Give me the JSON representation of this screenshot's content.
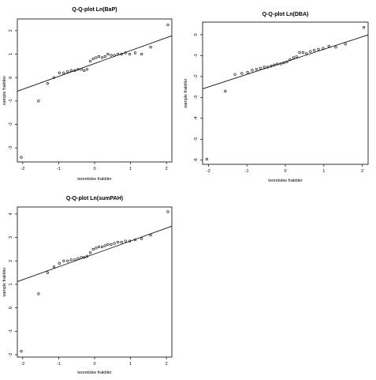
{
  "chart_data": [
    {
      "type": "scatter",
      "title": "Q-Q-plot Ln(BaP)",
      "xlabel": "teoretiske fraktiler",
      "ylabel": "sample fraktiler",
      "xlim": [
        -2.15,
        2.15
      ],
      "ylim": [
        -3.6,
        2.5
      ],
      "xticks": [
        -2,
        -1,
        0,
        1,
        2
      ],
      "yticks": [
        -3,
        -2,
        -1,
        0,
        1,
        2
      ],
      "grid": false,
      "reference_line": {
        "slope": 0.55,
        "intercept": 0.6
      },
      "series": [
        {
          "x": [
            -2.04,
            -1.56,
            -1.31,
            -1.13,
            -0.98,
            -0.86,
            -0.75,
            -0.65,
            -0.55,
            -0.46,
            -0.37,
            -0.29,
            -0.21,
            -0.12,
            -0.04,
            0.04,
            0.12,
            0.21,
            0.29,
            0.37,
            0.46,
            0.55,
            0.65,
            0.75,
            0.86,
            0.98,
            1.13,
            1.31,
            1.56,
            2.04
          ],
          "y": [
            -3.4,
            -1.0,
            -0.25,
            0.0,
            0.2,
            0.2,
            0.25,
            0.3,
            0.3,
            0.35,
            0.35,
            0.3,
            0.35,
            0.7,
            0.8,
            0.85,
            0.9,
            0.85,
            0.9,
            1.0,
            0.95,
            0.95,
            1.0,
            1.0,
            1.05,
            1.0,
            1.05,
            1.0,
            1.3,
            2.25
          ]
        }
      ]
    },
    {
      "type": "scatter",
      "title": "Q-Q-plot Ln(DBA)",
      "xlabel": "teoretiske fraktiler",
      "ylabel": "sample fraktiler",
      "xlim": [
        -2.15,
        2.15
      ],
      "ylim": [
        -6.2,
        0.6
      ],
      "xticks": [
        -2,
        -1,
        0,
        1,
        2
      ],
      "yticks": [
        -6,
        -5,
        -4,
        -3,
        -2,
        -1,
        0
      ],
      "grid": false,
      "reference_line": {
        "slope": 0.6,
        "intercept": -1.3
      },
      "series": [
        {
          "x": [
            -2.04,
            -1.56,
            -1.31,
            -1.13,
            -0.98,
            -0.86,
            -0.75,
            -0.65,
            -0.55,
            -0.46,
            -0.37,
            -0.29,
            -0.21,
            -0.12,
            -0.04,
            0.04,
            0.12,
            0.21,
            0.29,
            0.37,
            0.46,
            0.55,
            0.65,
            0.75,
            0.86,
            0.98,
            1.13,
            1.31,
            1.56,
            2.04
          ],
          "y": [
            -5.95,
            -2.7,
            -1.9,
            -1.85,
            -1.8,
            -1.7,
            -1.65,
            -1.6,
            -1.55,
            -1.55,
            -1.5,
            -1.45,
            -1.4,
            -1.4,
            -1.35,
            -1.3,
            -1.2,
            -1.1,
            -1.05,
            -0.85,
            -0.85,
            -0.9,
            -0.8,
            -0.75,
            -0.7,
            -0.65,
            -0.55,
            -0.6,
            -0.45,
            0.35
          ]
        }
      ]
    },
    {
      "type": "scatter",
      "title": "Q-Q-plot Ln(sumPAH)",
      "xlabel": "teoretiske fraktiler",
      "ylabel": "sample fraktiler",
      "xlim": [
        -2.15,
        2.15
      ],
      "ylim": [
        -2.1,
        4.3
      ],
      "xticks": [
        -2,
        -1,
        0,
        1,
        2
      ],
      "yticks": [
        -2,
        -1,
        0,
        1,
        2,
        3,
        4
      ],
      "grid": false,
      "reference_line": {
        "slope": 0.55,
        "intercept": 2.3
      },
      "series": [
        {
          "x": [
            -2.04,
            -1.56,
            -1.31,
            -1.13,
            -0.98,
            -0.86,
            -0.75,
            -0.65,
            -0.55,
            -0.46,
            -0.37,
            -0.29,
            -0.21,
            -0.12,
            -0.04,
            0.04,
            0.12,
            0.21,
            0.29,
            0.37,
            0.46,
            0.55,
            0.65,
            0.75,
            0.86,
            0.98,
            1.13,
            1.31,
            1.56,
            2.04
          ],
          "y": [
            -1.85,
            0.6,
            1.5,
            1.75,
            1.9,
            2.0,
            2.0,
            2.05,
            2.05,
            2.1,
            2.15,
            2.15,
            2.2,
            2.35,
            2.5,
            2.55,
            2.6,
            2.6,
            2.65,
            2.7,
            2.7,
            2.75,
            2.8,
            2.8,
            2.85,
            2.85,
            2.9,
            2.95,
            3.1,
            4.1
          ]
        }
      ]
    }
  ]
}
